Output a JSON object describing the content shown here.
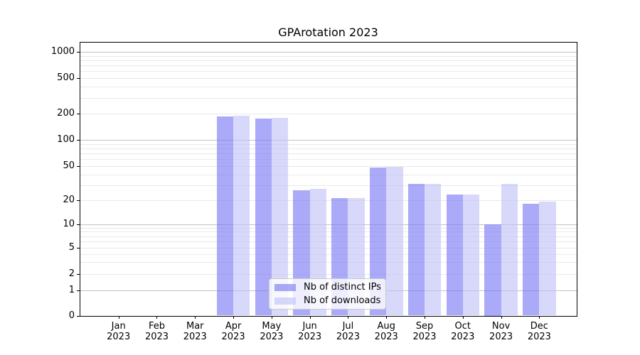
{
  "title": "GPArotation 2023",
  "chart_data": {
    "type": "bar",
    "title": "GPArotation 2023",
    "yscale": "symlog",
    "grid": "on",
    "ylim": [
      0,
      1300
    ],
    "y_ticks": [
      0,
      1,
      2,
      5,
      10,
      20,
      50,
      100,
      200,
      500,
      1000
    ],
    "legend_position": "lower center",
    "categories": [
      {
        "month": "Jan",
        "year": "2023"
      },
      {
        "month": "Feb",
        "year": "2023"
      },
      {
        "month": "Mar",
        "year": "2023"
      },
      {
        "month": "Apr",
        "year": "2023"
      },
      {
        "month": "May",
        "year": "2023"
      },
      {
        "month": "Jun",
        "year": "2023"
      },
      {
        "month": "Jul",
        "year": "2023"
      },
      {
        "month": "Aug",
        "year": "2023"
      },
      {
        "month": "Sep",
        "year": "2023"
      },
      {
        "month": "Oct",
        "year": "2023"
      },
      {
        "month": "Nov",
        "year": "2023"
      },
      {
        "month": "Dec",
        "year": "2023"
      }
    ],
    "series": [
      {
        "name": "Nb of distinct IPs",
        "color": "rgba(118,118,244,0.62)",
        "values": [
          0,
          0,
          0,
          185,
          173,
          26,
          21,
          48,
          31,
          23,
          10,
          18
        ]
      },
      {
        "name": "Nb of downloads",
        "color": "rgba(192,192,247,0.62)",
        "values": [
          0,
          0,
          0,
          186,
          179,
          27,
          21,
          49,
          31,
          23,
          31,
          19
        ]
      }
    ]
  },
  "colors": {
    "major_grid": "#c3c3c3",
    "minor_grid": "#e9e9e9",
    "axis": "#000000",
    "background": "#ffffff"
  }
}
